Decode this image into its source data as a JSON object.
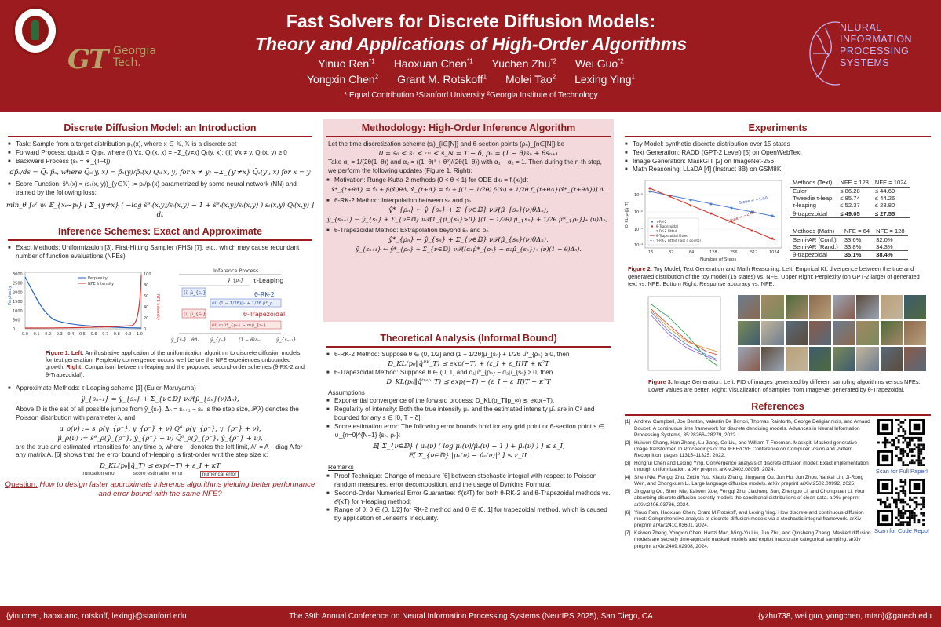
{
  "header": {
    "title_line1": "Fast Solvers for Discrete Diffusion Models:",
    "title_line2": "Theory and Applications of High-Order Algorithms",
    "authors_line1": [
      {
        "name": "Yinuo Ren",
        "sup": "*1"
      },
      {
        "name": "Haoxuan Chen",
        "sup": "*1"
      },
      {
        "name": "Yuchen Zhu",
        "sup": "*2"
      },
      {
        "name": "Wei Guo",
        "sup": "*2"
      }
    ],
    "authors_line2": [
      {
        "name": "Yongxin Chen",
        "sup": "2"
      },
      {
        "name": "Grant M. Rotskoff",
        "sup": "1"
      },
      {
        "name": "Molei Tao",
        "sup": "2"
      },
      {
        "name": "Lexing Ying",
        "sup": "1"
      }
    ],
    "affiliations": "* Equal Contribution     ¹Stanford University     ²Georgia Institute of Technology",
    "gt_logo_letters": "GT",
    "gt_logo_name": "Georgia Tech.",
    "neurips_logo_text": "NEURAL INFORMATION PROCESSING SYSTEMS",
    "bg_color": "#9b1b1f"
  },
  "intro": {
    "title": "Discrete Diffusion Model: an Introduction",
    "task": "Task: Sample from a target distribution p₀(x), where x ∈ 𝕏, 𝕏 is a discrete set",
    "forward": "Forward Process: dpₜ/dt = Qₜpₜ, where (i) ∀x, Qₜ(x, x) = −Σ_{y≠x} Qₜ(y, x); (ii) ∀x ≠ y, Qₜ(x, y) ≥ 0",
    "backward_label": "Backward Process (s̄ₜ = ∗_{T−t}):",
    "backward_eq": "dp̄ₛ/ds = Q̄ₛ p̄ₛ,   where Q̄ₛ(y, x) = p̄ₛ(y)/p̄ₛ(x) Qₛ(x, y) for x ≠ y;  −Σ_{y'≠x} Q̄ₛ(y', x) for x = y",
    "score": "Score Function: ŝᶿₜ(x) ≈ (sₜ(x, y))_{y∈𝕏} := pₜ/pₜ(x) parametrized by some neural network (NN) and trained by the following loss:",
    "loss_eq": "min_θ ∫₀ᵀ ψₜ 𝔼_{xₜ∼pₜ} [ Σ_{y≠x} ( −log ŝᶿₜ(x,y)/sₜ(x,y) − 1 + ŝᶿₜ(x,y)/sₜ(x,y) ) sₜ(x,y) Qₜ(x,y) ] dt"
  },
  "inference": {
    "title": "Inference Schemes: Exact and Approximate",
    "exact": "Exact Methods: Uniformization [3], First-Hitting Sampler (FHS) [7], etc., which may cause redundant number of function evaluations (NFEs)",
    "plot_legend": [
      "Perplexity",
      "NFE Intensity"
    ],
    "plot_ylabel_left": "Perplexity",
    "plot_ylabel_right": "NFE Intensity",
    "plot_yticks_left": [
      "3000",
      "2500",
      "2000",
      "1500",
      "1000",
      "500",
      "0"
    ],
    "plot_yticks_right": [
      "100",
      "80",
      "60",
      "40",
      "20",
      "0"
    ],
    "plot_xticks": [
      "0.0",
      "0.1",
      "0.2",
      "0.3",
      "0.4",
      "0.5",
      "0.6",
      "0.7",
      "0.8",
      "0.9",
      "1.0"
    ],
    "diagram_top": "Inference Process",
    "diagram_labels": {
      "tau": "τ-Leaping",
      "rk2": "θ-RK-2",
      "trap": "θ-Trapezoidal",
      "yrho": "ŷ_{ρₙ}",
      "ys": "ŷ_{sₙ}",
      "ysn1": "ŷ_{sₙ₊₁}",
      "theta_dn": "θΔₙ",
      "one_minus": "(1 − θ)Δₙ",
      "i_mu": "(i) μ̂_{sₙ}",
      "ii_mu": "(ii) (1 − 1/2θ)μ̂ₛ + 1/2θ μ̂*_ρ",
      "i_mu2": "(i) μ̂_{sₙ}",
      "ii_mu2": "(ii) α₁μ̂*_{ρₙ} − α₂μ̂_{sₙ}"
    },
    "caption_label": "Figure 1.",
    "caption_left": "Left:",
    "caption_left_text": "An illustrative application of the uniformization algorithm to discrete diffusion models for text generation. Perplexity convergence occurs well before the NFE experiences unbounded growth.",
    "caption_right": "Right:",
    "caption_right_text": "Comparison between τ-leaping and the proposed second-order schemes (θ-RK-2 and θ-Trapezoidal).",
    "approx": "Approximate Methods: τ-Leaping scheme [1] (Euler-Maruyama)",
    "approx_eq": "ŷ_{sₙ₊₁} = ŷ_{sₙ} + Σ_{ν∈𝔻} ν𝒫(μ̂_{sₙ}(ν)Δₙ),",
    "approx_text": "Above 𝔻 is the set of all possible jumps from ŷ_{sₙ}, Δₙ = sₙ₊₁ − sₙ is the step size, 𝒫(λ) denotes the Poisson distribution with parameter λ, and",
    "mu_eq1": "μ_ρ(ν) := s_ρ(y_{ρ⁻}, y_{ρ⁻} + ν) Q̄⁰_ρ(y_{ρ⁻}, y_{ρ⁻} + ν),",
    "mu_eq2": "μ̂_ρ(ν) := ŝᶿ_ρ(ŷ_{ρ⁻}, ŷ_{ρ⁻} + ν) Q̄⁰_ρ(ŷ_{ρ⁻}, ŷ_{ρ⁻} + ν),",
    "mu_text": "are the true and estimated intensities for any time ρ, where − denotes the left limit, A⁰ = A − diag A for any matrix A. [6] shows that the error bound of τ-leaping is first-order w.r.t the step size κ:",
    "dkl_eq": "D_KL(p₀‖q̂_T) ≲ exp(−T) + ε_I + κT",
    "brace_labels": [
      "truncation error",
      "score estimation error",
      "numerical error"
    ],
    "question_label": "Question:",
    "question_text": "How to design faster approximate inference algorithms yielding better performance and error bound with the same NFE?"
  },
  "methodology": {
    "title": "Methodology: High-Order Inference Algorithm",
    "intro": "Let the time discretization scheme (sᵢ)_{i∈[N]} and θ-section points (ρₙ)_{n∈[N]} be",
    "disc_eq": "0 = s₀ < s₁ < ··· < s_N = T − δ,  ρₙ = (1 − θ)sₙ + θsₙ₊₁",
    "alpha_text": "Take α₁ = 1/(2θ(1−θ)) and α₂ = ((1−θ)² + θ²)/(2θ(1−θ)) with α₁ − α₂ = 1. Then during the n-th step, we perform the following updates (Figure 1, Right):",
    "motivation": "Motivation: Runge-Kutta-2 methods (0 < θ < 1) for ODE dxₜ = fₜ(xₜ)dt",
    "motivation_eq": "x̂*_{t+θΔ} = x̂ₜ + fₜ(x̂ₜ)θΔ,   x̂_{t+Δ} = x̂ₜ + [(1 − 1/2θ) fₜ(x̂ₜ) + 1/2θ f_{t+θΔ}(x̂*_{t+θΔ})] Δ.",
    "rk2": "θ-RK-2 Method: Interpolation between sₙ and ρₙ",
    "rk2_eq1": "ŷ*_{ρₙ} ← ŷ_{sₙ} + Σ_{ν∈𝔻} ν𝒫(μ̂_{sₙ}(ν)θΔₙ),",
    "rk2_eq2": "ŷ_{sₙ₊₁} ← ŷ_{sₙ} + Σ_{ν∈𝔻} ν𝒫(1_{μ̂_{sₙ}>0} [(1 − 1/2θ) μ̂_{sₙ} + 1/2θ μ̂*_{ρₙ}]₊ (ν)Δₙ).",
    "trap": "θ-Trapezoidal Method: Extrapolation beyond sₙ and ρₙ",
    "trap_eq1": "ŷ*_{ρₙ} ← ŷ_{sₙ} + Σ_{ν∈𝔻} ν𝒫(μ̂_{sₙ}(ν)θΔₙ),",
    "trap_eq2": "ŷ_{sₙ₊₁} ← ŷ*_{ρₙ} + Σ_{ν∈𝔻} ν𝒫((α₁μ̂*_{ρₙ} − α₂μ̂_{sₙ})₊ (ν)(1 − θ)Δₙ).",
    "bg_color": "#f3d9dc"
  },
  "theory": {
    "title": "Theoretical Analysis (Informal Bound)",
    "rk2": "θ-RK-2 Method: Suppose θ ∈ (0, 1/2] and (1 − 1/2θ)μ̂_{sₙ} + 1/2θ μ̂*_{ρₙ} ≥ 0, then",
    "rk2_eq": "D_KL(p₀‖q̂ᴿᴷ_T) ≲ exp(−T) + (ε_I + ε_II)T + κ²T",
    "trap": "θ-Trapezoidal Method: Suppose θ ∈ (0, 1] and α₁μ̂*_{ρₙ} − α₂μ̂_{sₙ} ≥ 0, then",
    "trap_eq": "D_KL(p₀‖q̂ᵗʳᵃᵖ_T) ≲ exp(−T) + (ε_I + ε_II)T + κ²T",
    "assumptions_label": "Assumptions",
    "a1": "Exponential convergence of the forward process: D_KL(p_T‖p_∞) ≲ exp(−T).",
    "a2": "Regularity of intensity: Both the true intensity μₛ and the estimated intensity μ̂ₛ are in C² and bounded for any s ∈ [0, T − δ].",
    "a3": "Score estimation error: The following error bounds hold for any grid point or θ-section point s ∈ ∪_{n=0}^{N−1} {sₙ, ρₙ}:",
    "a3_eq1": "𝔼[ Σ_{ν∈𝔻} ( μₛ(ν) ( log μₛ(ν)/μ̂ₛ(ν) − 1 ) + μ̂ₛ(ν) ) ] ≤ ε_I,",
    "a3_eq2": "𝔼[ Σ_{ν∈𝔻} |μₛ(ν) − μ̂ₛ(ν)|² ] ≤ ε_II.",
    "remarks_label": "Remarks",
    "r1": "Proof Technique: Change of measure [6] between stochastic integral with respect to Poisson random measures, error decomposition, and the usage of Dynkin's Formula;",
    "r2": "Second-Order Numerical Error Guarantee: 𝒪(κ²T) for both θ-RK-2 and θ-Trapezoidal methods vs. 𝒪(κT) for τ-leaping method;",
    "r3": "Range of θ: θ ∈ (0, 1/2] for RK-2 method and θ ∈ (0, 1] for trapezoidal method, which is caused by application of Jensen's Inequality."
  },
  "experiments": {
    "title": "Experiments",
    "items": [
      "Toy Model: synthetic discrete distribution over 15 states",
      "Text Generation: RADD (GPT-2 Level) [5] on OpenWebText",
      "Image Generation: MaskGIT [2] on ImageNet-256",
      "Math Reasoning: LLaDA [4] (Instruct 8B) on GSM8K"
    ],
    "toy_plot": {
      "xlabel": "Number of Steps",
      "ylabel": "D_KL(p₀‖q̂_T)",
      "xticks": [
        "16",
        "32",
        "64",
        "128",
        "256",
        "512",
        "1024"
      ],
      "yticks": [
        "10⁻¹",
        "10⁻²",
        "10⁻³",
        "10⁻⁴"
      ],
      "legend": [
        "τ-RK-2",
        "θ-Trapezoidal",
        "τ-RK-2 Fitted",
        "θ-Trapezoidal Fitted",
        "τ-RK-2 Fitted (last 4 points)"
      ],
      "annotations": [
        "Slope = −1.00",
        "Slope = −2.04"
      ]
    },
    "table_text": {
      "header": [
        "Methods (Text)",
        "NFE = 128",
        "NFE = 1024"
      ],
      "rows": [
        [
          "Euler",
          "≤ 86.28",
          "≤ 44.69"
        ],
        [
          "Tweedie τ-leap.",
          "≤ 85.74",
          "≤ 44.26"
        ],
        [
          "τ-leaping",
          "≤ 52.37",
          "≤ 28.80"
        ],
        [
          "θ-trapezoidal",
          "≤ 49.05",
          "≤ 27.55"
        ]
      ]
    },
    "table_math": {
      "header": [
        "Methods (Math)",
        "NFE = 64",
        "NFE = 128"
      ],
      "rows": [
        [
          "Semi-AR (Conf.)",
          "33.6%",
          "32.0%"
        ],
        [
          "Semi-AR (Rand.)",
          "33.8%",
          "34.3%"
        ],
        [
          "θ-trapezoidal",
          "35.1%",
          "38.4%"
        ]
      ]
    },
    "fig2_label": "Figure 2.",
    "fig2_text": "Toy Model, Text Generation and Math Reasoning. Left: Empirical KL divergence between the true and generated distribution of the toy model (15 states) vs. NFE. Upper Right: Perplexity (on GPT-2 large) of generated text vs. NFE. Bottom Right: Response accuracy vs. NFE.",
    "fig3_label": "Figure 3.",
    "fig3_text": "Image Generation. Left: FID of images generated by different sampling algorithms versus NFEs. Lower values are better. Right: Visualization of samples from ImageNet generated by θ-Trapezoidal."
  },
  "references": {
    "title": "References",
    "items": [
      "Andrew Campbell, Joe Benton, Valentin De Bortoli, Thomas Rainforth, George Deligiannidis, and Arnaud Doucet. A continuous time framework for discrete denoising models. Advances in Neural Information Processing Systems, 35:28266–28279, 2022.",
      "Huiwen Chang, Han Zhang, Lu Jiang, Ce Liu, and William T Freeman. Maskgit: Masked generative image transformer. In Proceedings of the IEEE/CVF Conference on Computer Vision and Pattern Recognition, pages 11315–11325, 2022.",
      "Hongrui Chen and Lexing Ying. Convergence analysis of discrete diffusion model: Exact implementation through uniformization. arXiv preprint arXiv:2402.08095, 2024.",
      "Shen Nie, Fengqi Zhu, Zebin You, Xiaolu Zhang, Jingyang Ou, Jun Hu, Jun Zhou, Yankai Lin, Ji-Rong Wen, and Chongxuan Li. Large language diffusion models. arXiv preprint arXiv:2502.09992, 2025.",
      "Jingyang Ou, Shen Nie, Kaiwen Xue, Fengqi Zhu, Jiacheng Sun, Zhenguo Li, and Chongxuan Li. Your absorbing discrete diffusion secretly models the conditional distributions of clean data. arXiv preprint arXiv:2406.03736, 2024.",
      "Yinuo Ren, Haoxuan Chen, Grant M Rotskoff, and Lexing Ying. How discrete and continuous diffusion meet: Comprehensive analysis of discrete diffusion models via a stochastic integral framework. arXiv preprint arXiv:2410.03601, 2024.",
      "Kaiwen Zheng, Yongxin Chen, Hanzi Mao, Ming-Yu Liu, Jun Zhu, and Qinsheng Zhang. Masked diffusion models are secretly time-agnostic masked models and exploit inaccurate categorical sampling. arXiv preprint arXiv:2409.02908, 2024."
    ],
    "qr1_label": "Scan for Full Paper!",
    "qr2_label": "Scan for Code Repo!"
  },
  "footer": {
    "left": "{yinuoren, haoxuanc, rotskoff, lexing}@stanford.edu",
    "center": "The 39th Annual Conference on Neural Information Processing Systems (NeurIPS 2025), San Diego, CA",
    "right": "{yzhu738, wei.guo, yongchen, mtao}@gatech.edu"
  }
}
